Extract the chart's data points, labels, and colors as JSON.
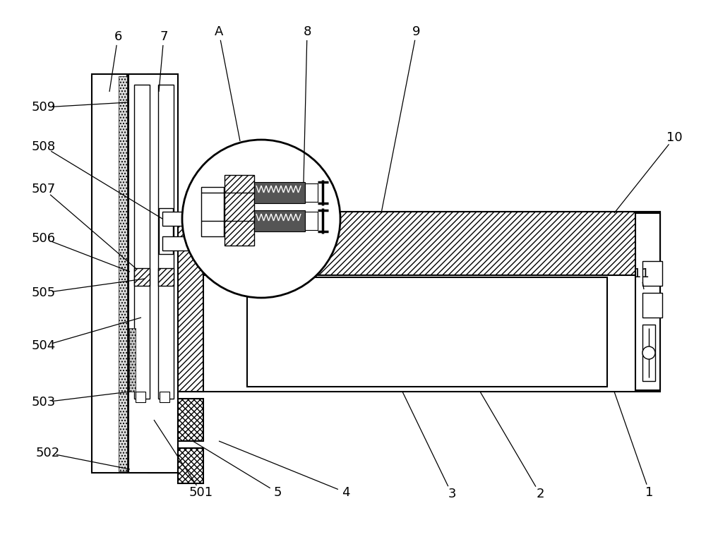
{
  "bg_color": "#ffffff",
  "fig_width": 10.0,
  "fig_height": 7.61,
  "dpi": 100
}
